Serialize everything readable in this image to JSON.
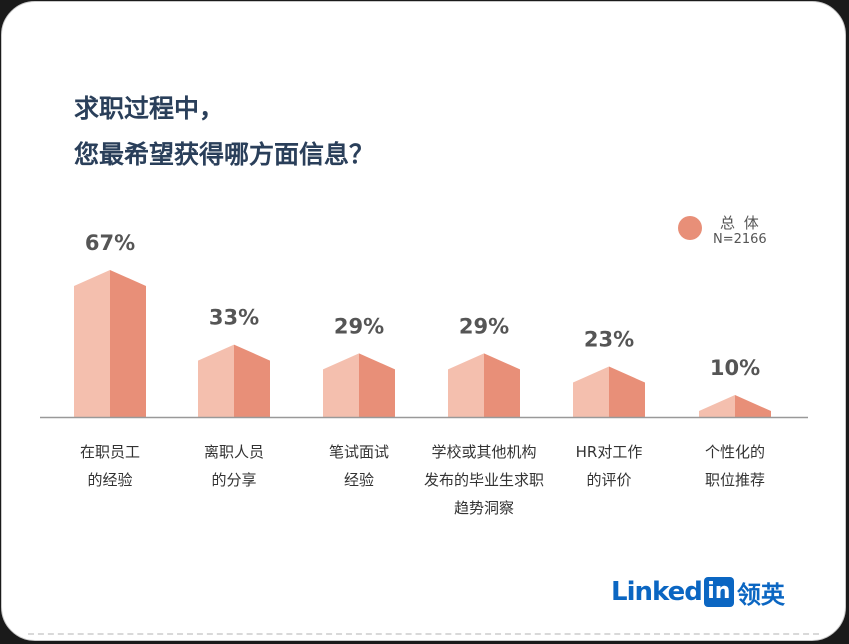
{
  "title_lines": [
    "求职过程中，",
    "您最希望获得哪方面信息？"
  ],
  "legend": {
    "name": "总 体",
    "n": "N=2166",
    "color": "#e88f78"
  },
  "colors": {
    "bar_light": "#f4bfae",
    "bar_dark": "#e88f78",
    "axis": "#999999",
    "title": "#2a3f5a"
  },
  "logo": {
    "text": "Linked",
    "in": "in",
    "cn": "领英"
  },
  "chart_data": {
    "type": "bar",
    "categories": [
      "在职员工\n的经验",
      "离职人员\n的分享",
      "笔试面试\n经验",
      "学校或其他机构\n发布的毕业生求职\n趋势洞察",
      "HR对工作\n的评价",
      "个性化的\n职位推荐"
    ],
    "values": [
      67,
      33,
      29,
      29,
      23,
      10
    ],
    "value_labels": [
      "67%",
      "33%",
      "29%",
      "29%",
      "23%",
      "10%"
    ],
    "series": [
      {
        "name": "总 体",
        "values": [
          67,
          33,
          29,
          29,
          23,
          10
        ]
      }
    ],
    "ylim": [
      0,
      70
    ],
    "legend_position": "top-right",
    "grid": false
  }
}
